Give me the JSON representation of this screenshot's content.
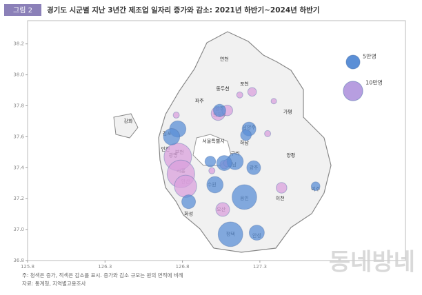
{
  "chart_data": {
    "type": "bubble-map",
    "badge": "그림 2",
    "title": "경기도 시군별 지난 3년간 제조업 일자리 증가와 감소: 2021년 하반기~2024년 하반기",
    "xlim": [
      125.8,
      128.24
    ],
    "ylim": [
      36.8,
      38.35
    ],
    "xticks": [
      125.8,
      126.3,
      126.8,
      127.3
    ],
    "yticks": [
      36.8,
      {
        "value": 37,
        "label": "37.0"
      },
      37.2,
      37.4,
      37.6,
      37.8,
      {
        "value": 38,
        "label": "38.0"
      },
      38.2
    ],
    "increase_color": "#5b8fd6",
    "decrease_color": "#d9a0dc",
    "legend": [
      {
        "label": "5만명",
        "size": 50000,
        "color": "#5b8fd6"
      },
      {
        "label": "10만명",
        "size": 100000,
        "color": "#b79ee0"
      }
    ],
    "increase": {
      "x": [
        126.77,
        126.73,
        127.04,
        127.23,
        127.21,
        127.14,
        127.26,
        127.07,
        127.01,
        126.84,
        127.2,
        127.11,
        127.28,
        127.66,
        126.98
      ],
      "y": [
        37.65,
        37.6,
        37.77,
        37.65,
        37.61,
        37.44,
        37.4,
        37.43,
        37.29,
        37.18,
        37.21,
        36.97,
        36.98,
        37.28,
        37.44
      ],
      "size": [
        70000,
        70000,
        40000,
        50000,
        30000,
        70000,
        50000,
        60000,
        70000,
        50000,
        160000,
        160000,
        60000,
        20000,
        30000
      ]
    },
    "decrease": {
      "x": [
        126.77,
        126.79,
        126.82,
        127.06,
        127.44,
        127.03,
        127.09,
        127.35,
        127.07,
        127.17,
        126.76,
        127.25,
        127.39,
        126.99,
        127.09
      ],
      "y": [
        37.47,
        37.36,
        37.28,
        37.13,
        37.27,
        37.75,
        37.77,
        37.62,
        37.42,
        37.87,
        37.74,
        37.89,
        37.83,
        37.38,
        37.43
      ],
      "size": [
        200000,
        200000,
        130000,
        50000,
        30000,
        50000,
        30000,
        10000,
        20000,
        10000,
        10000,
        20000,
        8000,
        10000,
        15000
      ]
    },
    "places": {
      "names": [
        "연천",
        "포천",
        "동두천",
        "파주",
        "양주",
        "가평",
        "강화",
        "김포",
        "서울특별시",
        "인천",
        "광명",
        "남양주",
        "구리",
        "양평",
        "성남",
        "광주",
        "수원",
        "용인",
        "화성",
        "오산",
        "이천",
        "여주",
        "평택",
        "안성",
        "부천",
        "시흥",
        "안산",
        "의정부",
        "하남"
      ],
      "x": [
        127.07,
        127.2,
        127.06,
        126.91,
        127.04,
        127.48,
        126.45,
        126.7,
        127.0,
        126.69,
        126.74,
        127.23,
        127.14,
        127.5,
        127.12,
        127.26,
        126.99,
        127.2,
        126.84,
        127.05,
        127.43,
        127.66,
        127.11,
        127.28,
        126.78,
        126.79,
        126.82,
        127.04,
        127.2
      ],
      "y": [
        38.1,
        37.94,
        37.91,
        37.83,
        37.78,
        37.76,
        37.7,
        37.62,
        37.57,
        37.52,
        37.48,
        37.66,
        37.49,
        37.48,
        37.42,
        37.4,
        37.29,
        37.2,
        37.1,
        37.13,
        37.2,
        37.26,
        36.97,
        36.96,
        37.5,
        37.38,
        37.31,
        37.74,
        37.56
      ]
    },
    "note": "주: 청색은 증가, 적색은 감소를 표시. 증가와 감소 규모는 원의 면적에 비례",
    "source": "자료: 통계청, 지역별고용조사",
    "watermark": "동네방네"
  }
}
